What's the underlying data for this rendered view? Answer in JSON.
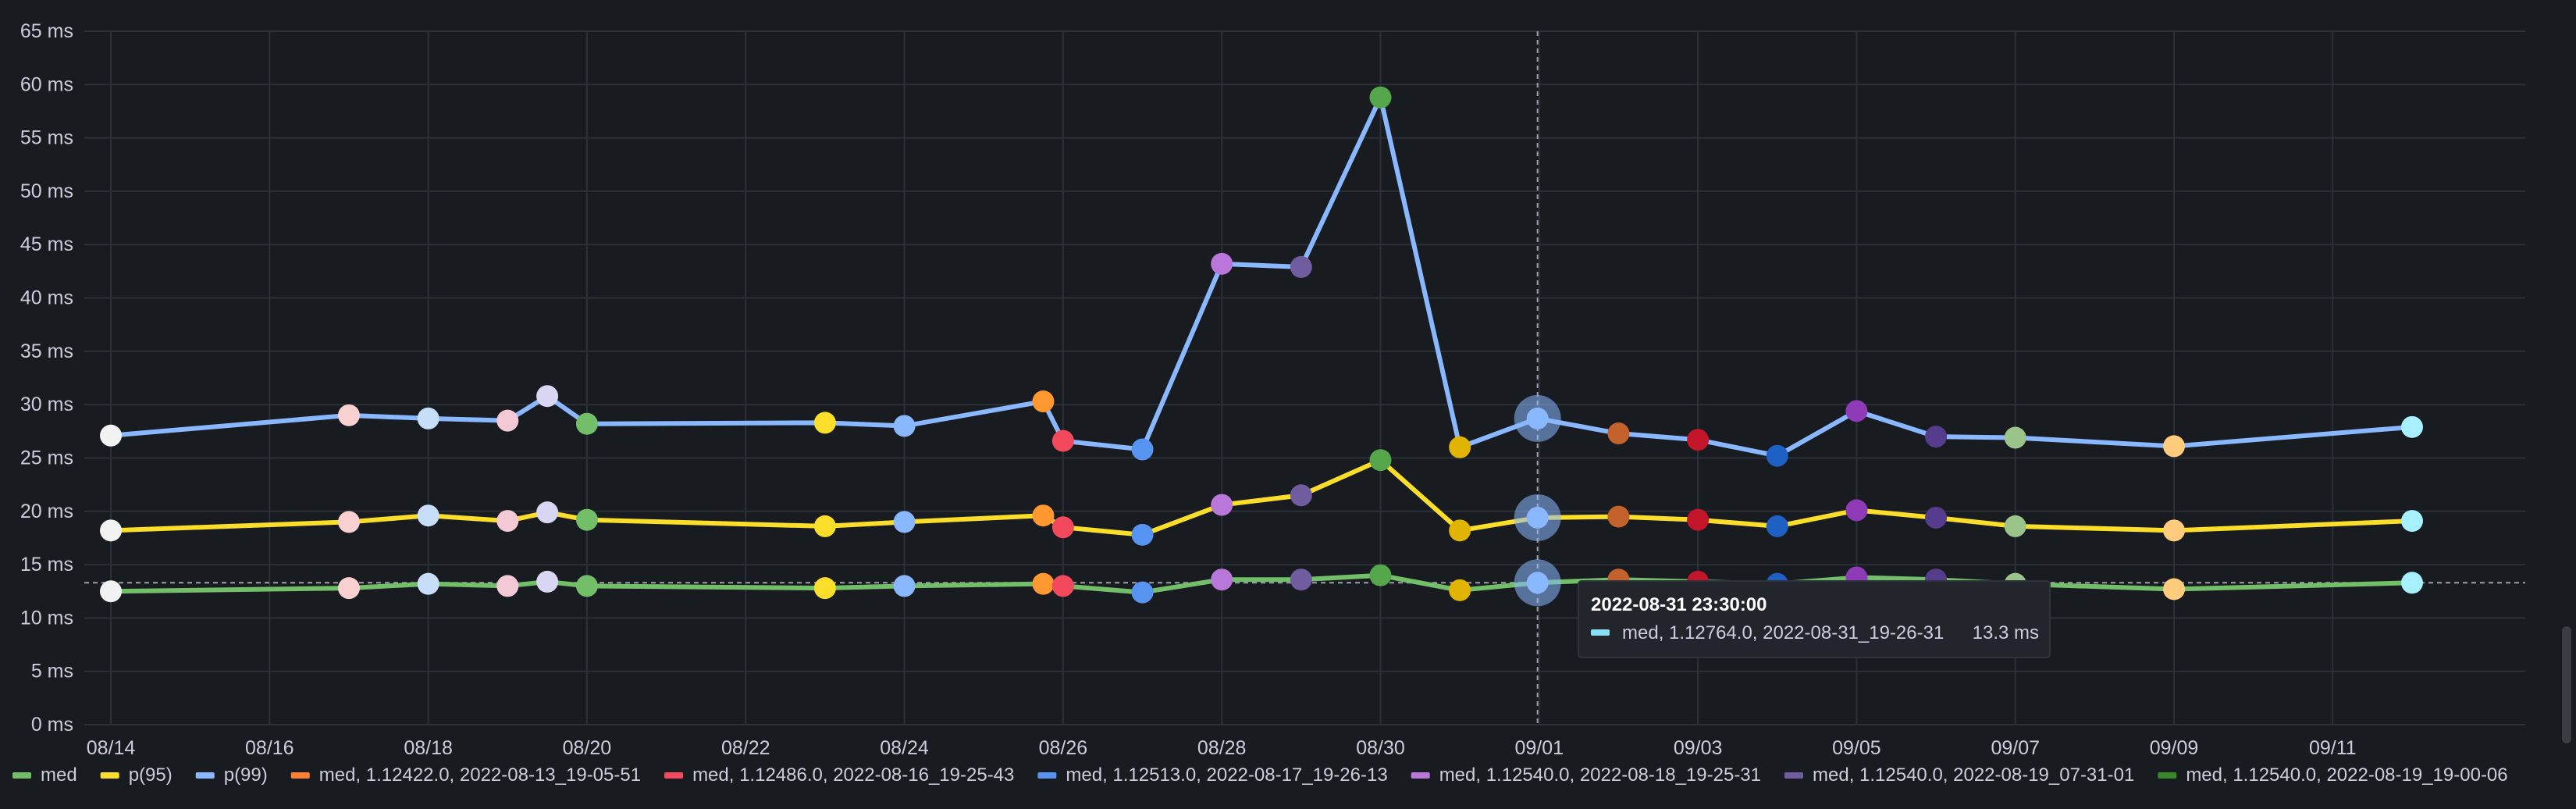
{
  "chart_data": {
    "type": "line",
    "y_unit_label": "ms",
    "yticks": [
      "0 ms",
      "5 ms",
      "10 ms",
      "15 ms",
      "20 ms",
      "25 ms",
      "30 ms",
      "35 ms",
      "40 ms",
      "45 ms",
      "50 ms",
      "55 ms",
      "60 ms",
      "65 ms"
    ],
    "ytick_values": [
      0,
      5,
      10,
      15,
      20,
      25,
      30,
      35,
      40,
      45,
      50,
      55,
      60,
      65
    ],
    "ylim": [
      0,
      65
    ],
    "xlim": [
      "2022-08-14",
      "2022-09-12"
    ],
    "xticks": [
      "08/14",
      "08/16",
      "08/18",
      "08/20",
      "08/22",
      "08/24",
      "08/26",
      "08/28",
      "08/30",
      "09/01",
      "09/03",
      "09/05",
      "09/07",
      "09/09",
      "09/11"
    ],
    "xtick_dates": [
      "2022-08-14",
      "2022-08-16",
      "2022-08-18",
      "2022-08-20",
      "2022-08-22",
      "2022-08-24",
      "2022-08-26",
      "2022-08-28",
      "2022-08-30",
      "2022-09-01",
      "2022-09-03",
      "2022-09-05",
      "2022-09-07",
      "2022-09-09",
      "2022-09-11"
    ],
    "grid": true,
    "legend_position": "bottom",
    "x_dates": [
      "2022-08-14",
      "2022-08-17",
      "2022-08-18",
      "2022-08-19",
      "2022-08-19 12:00",
      "2022-08-20",
      "2022-08-23",
      "2022-08-24",
      "2022-08-25 18:00",
      "2022-08-26",
      "2022-08-27",
      "2022-08-28",
      "2022-08-29",
      "2022-08-30",
      "2022-08-31",
      "2022-08-31 23:30",
      "2022-09-02",
      "2022-09-03",
      "2022-09-04",
      "2022-09-05",
      "2022-09-06",
      "2022-09-07",
      "2022-09-09",
      "2022-09-12"
    ],
    "series": [
      {
        "name": "med",
        "color": "#73bf69",
        "values": [
          12.5,
          12.8,
          13.2,
          13.0,
          13.4,
          13.0,
          12.8,
          13.0,
          13.2,
          13.0,
          12.4,
          13.6,
          13.6,
          14.0,
          12.6,
          13.3,
          13.6,
          13.4,
          13.2,
          13.8,
          13.6,
          13.2,
          12.7,
          13.3
        ]
      },
      {
        "name": "p(95)",
        "color": "#fade2a",
        "values": [
          18.2,
          19.0,
          19.6,
          19.1,
          19.9,
          19.2,
          18.6,
          19.0,
          19.6,
          18.5,
          17.8,
          20.6,
          21.5,
          24.8,
          18.2,
          19.4,
          19.5,
          19.2,
          18.6,
          20.1,
          19.4,
          18.6,
          18.2,
          19.1
        ]
      },
      {
        "name": "p(99)",
        "color": "#8ab8ff",
        "values": [
          27.1,
          29.0,
          28.7,
          28.5,
          30.8,
          28.2,
          28.3,
          28.0,
          30.3,
          26.6,
          25.8,
          43.2,
          42.9,
          58.8,
          26.0,
          28.7,
          27.3,
          26.7,
          25.2,
          29.4,
          27.0,
          26.9,
          26.1,
          27.9
        ]
      }
    ],
    "marker_colors": [
      "#f2f2f2",
      "#f8d0d0",
      "#c6def7",
      "#f4c9d6",
      "#d8d6f2",
      "#73bf69",
      "#fade2a",
      "#8ab8ff",
      "#ff9830",
      "#f2495c",
      "#5794f2",
      "#b877d9",
      "#705da0",
      "#56a64b",
      "#e0b400",
      "#8ab8ff",
      "#c4622d",
      "#c4162a",
      "#1f60c4",
      "#8f3bb8",
      "#563c8d",
      "#9ac48a",
      "#ffcb7d",
      "#a6f0ff"
    ],
    "hover_index": 15,
    "legend": [
      {
        "label": "med",
        "color": "#73bf69"
      },
      {
        "label": "p(95)",
        "color": "#fade2a"
      },
      {
        "label": "p(99)",
        "color": "#8ab8ff"
      },
      {
        "label": "med, 1.12422.0, 2022-08-13_19-05-51",
        "color": "#ff7f33"
      },
      {
        "label": "med, 1.12486.0, 2022-08-16_19-25-43",
        "color": "#f2495c"
      },
      {
        "label": "med, 1.12513.0, 2022-08-17_19-26-13",
        "color": "#5794f2"
      },
      {
        "label": "med, 1.12540.0, 2022-08-18_19-25-31",
        "color": "#b877d9"
      },
      {
        "label": "med, 1.12540.0, 2022-08-19_07-31-01",
        "color": "#705da0"
      },
      {
        "label": "med, 1.12540.0, 2022-08-19_19-00-06",
        "color": "#37872d"
      }
    ],
    "tooltip": {
      "title": "2022-08-31 23:30:00",
      "series_label": "med, 1.12764.0, 2022-08-31_19-26-31",
      "value": "13.3 ms",
      "color": "#8ae0f2"
    }
  }
}
